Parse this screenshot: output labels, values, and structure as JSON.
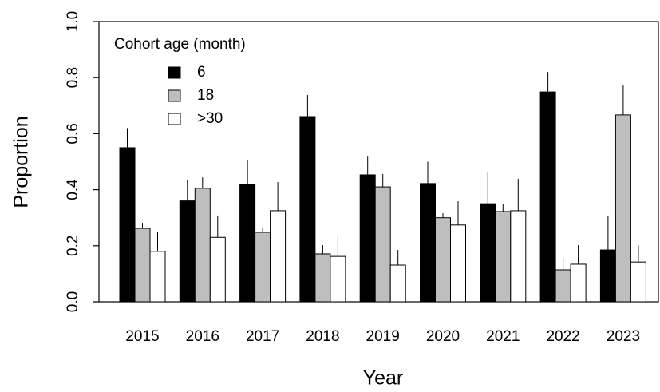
{
  "chart_data": {
    "type": "bar",
    "categories": [
      "2015",
      "2016",
      "2017",
      "2018",
      "2019",
      "2020",
      "2021",
      "2022",
      "2023"
    ],
    "series": [
      {
        "name": "6",
        "color": "#000000",
        "values": [
          0.55,
          0.36,
          0.42,
          0.661,
          0.453,
          0.422,
          0.35,
          0.749,
          0.185
        ],
        "errors": [
          0.07,
          0.076,
          0.084,
          0.077,
          0.065,
          0.078,
          0.112,
          0.071,
          0.12
        ]
      },
      {
        "name": "18",
        "color": "#bebebe",
        "values": [
          0.262,
          0.405,
          0.248,
          0.171,
          0.41,
          0.3,
          0.322,
          0.114,
          0.667
        ],
        "errors": [
          0.02,
          0.039,
          0.017,
          0.031,
          0.046,
          0.016,
          0.028,
          0.043,
          0.105
        ]
      },
      {
        "name": ">30",
        "color": "#ffffff",
        "values": [
          0.18,
          0.23,
          0.325,
          0.162,
          0.131,
          0.274,
          0.325,
          0.134,
          0.142
        ],
        "errors": [
          0.07,
          0.078,
          0.102,
          0.074,
          0.054,
          0.085,
          0.114,
          0.068,
          0.06
        ]
      }
    ],
    "xlabel": "Year",
    "ylabel": "Proportion",
    "legend_title": "Cohort age (month)",
    "legend": "top-left",
    "ylim": [
      0,
      1
    ],
    "yticks": [
      {
        "value": 0,
        "label": "0.0"
      },
      0.2,
      0.4,
      0.6,
      0.8,
      {
        "value": 1,
        "label": "1.0"
      }
    ]
  }
}
